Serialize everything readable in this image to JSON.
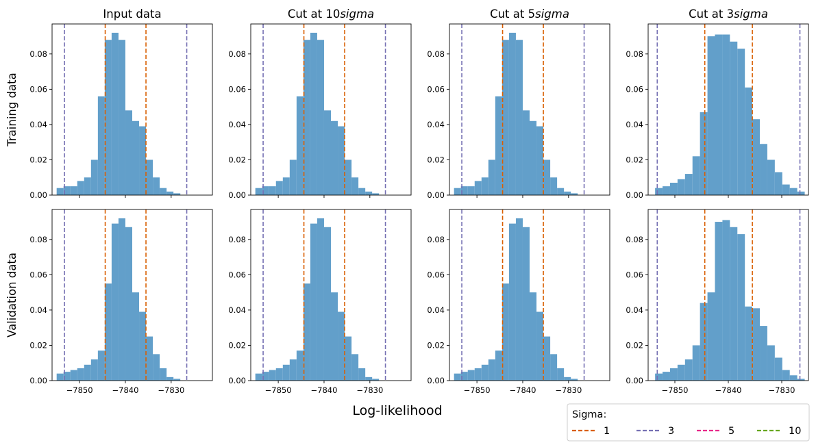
{
  "figure": {
    "xlabel": "Log-likelihood",
    "row_labels": [
      "Training data",
      "Validation data"
    ],
    "column_titles": [
      {
        "text": "Input data",
        "sigma_suffix": ""
      },
      {
        "text": "Cut at 10",
        "sigma_suffix": "sigma"
      },
      {
        "text": "Cut at 5",
        "sigma_suffix": "sigma"
      },
      {
        "text": "Cut at 3",
        "sigma_suffix": "sigma"
      }
    ]
  },
  "legend": {
    "title": "Sigma:",
    "entries": [
      {
        "label": "1",
        "color": "#d95f02"
      },
      {
        "label": "3",
        "color": "#7570b3"
      },
      {
        "label": "5",
        "color": "#e7298a"
      },
      {
        "label": "10",
        "color": "#66a61e"
      }
    ]
  },
  "chart_data": [
    {
      "type": "bar",
      "row": "Training data",
      "column": "Input data",
      "bins_start": -7855.0,
      "bin_width": 1.5,
      "values": [
        0.004,
        0.005,
        0.005,
        0.008,
        0.01,
        0.02,
        0.056,
        0.088,
        0.092,
        0.088,
        0.048,
        0.042,
        0.039,
        0.02,
        0.01,
        0.004,
        0.002,
        0.001
      ],
      "vlines": [
        {
          "sigma": "1",
          "x": [
            -7844.4,
            -7835.5
          ]
        },
        {
          "sigma": "3",
          "x": [
            -7853.3,
            -7826.6
          ]
        }
      ],
      "xlim": [
        -7856,
        -7821
      ],
      "ylim": [
        0,
        0.097
      ],
      "xticks": [
        -7850,
        -7840,
        -7830
      ],
      "yticks": [
        0.0,
        0.02,
        0.04,
        0.06,
        0.08
      ]
    },
    {
      "type": "bar",
      "row": "Training data",
      "column": "Cut at 10sigma",
      "bins_start": -7855.0,
      "bin_width": 1.5,
      "values": [
        0.004,
        0.005,
        0.005,
        0.008,
        0.01,
        0.02,
        0.056,
        0.088,
        0.092,
        0.088,
        0.048,
        0.042,
        0.039,
        0.02,
        0.01,
        0.004,
        0.002,
        0.001
      ],
      "vlines": [
        {
          "sigma": "1",
          "x": [
            -7844.4,
            -7835.5
          ]
        },
        {
          "sigma": "3",
          "x": [
            -7853.3,
            -7826.6
          ]
        }
      ],
      "xlim": [
        -7856,
        -7821
      ],
      "ylim": [
        0,
        0.097
      ],
      "xticks": [
        -7850,
        -7840,
        -7830
      ],
      "yticks": [
        0.0,
        0.02,
        0.04,
        0.06,
        0.08
      ]
    },
    {
      "type": "bar",
      "row": "Training data",
      "column": "Cut at 5sigma",
      "bins_start": -7855.0,
      "bin_width": 1.5,
      "values": [
        0.004,
        0.005,
        0.005,
        0.008,
        0.01,
        0.02,
        0.056,
        0.088,
        0.092,
        0.088,
        0.048,
        0.042,
        0.039,
        0.02,
        0.01,
        0.004,
        0.002,
        0.001
      ],
      "vlines": [
        {
          "sigma": "1",
          "x": [
            -7844.4,
            -7835.5
          ]
        },
        {
          "sigma": "3",
          "x": [
            -7853.3,
            -7826.6
          ]
        }
      ],
      "xlim": [
        -7856,
        -7821
      ],
      "ylim": [
        0,
        0.097
      ],
      "xticks": [
        -7850,
        -7840,
        -7830
      ],
      "yticks": [
        0.0,
        0.02,
        0.04,
        0.06,
        0.08
      ]
    },
    {
      "type": "bar",
      "row": "Training data",
      "column": "Cut at 3sigma",
      "bins_start": -7853.7,
      "bin_width": 1.4,
      "values": [
        0.004,
        0.005,
        0.007,
        0.009,
        0.012,
        0.022,
        0.047,
        0.09,
        0.091,
        0.091,
        0.087,
        0.083,
        0.061,
        0.043,
        0.029,
        0.02,
        0.013,
        0.006,
        0.004,
        0.002
      ],
      "vlines": [
        {
          "sigma": "1",
          "x": [
            -7844.4,
            -7835.5
          ]
        },
        {
          "sigma": "3",
          "x": [
            -7853.3,
            -7826.6
          ]
        }
      ],
      "xlim": [
        -7855,
        -7825
      ],
      "ylim": [
        0,
        0.097
      ],
      "xticks": [
        -7850,
        -7840,
        -7830
      ],
      "yticks": [
        0.0,
        0.02,
        0.04,
        0.06,
        0.08
      ]
    },
    {
      "type": "bar",
      "row": "Validation data",
      "column": "Input data",
      "bins_start": -7855.0,
      "bin_width": 1.5,
      "values": [
        0.004,
        0.005,
        0.006,
        0.007,
        0.009,
        0.012,
        0.017,
        0.055,
        0.089,
        0.092,
        0.087,
        0.05,
        0.039,
        0.025,
        0.015,
        0.007,
        0.002,
        0.001
      ],
      "vlines": [
        {
          "sigma": "1",
          "x": [
            -7844.4,
            -7835.5
          ]
        },
        {
          "sigma": "3",
          "x": [
            -7853.3,
            -7826.6
          ]
        }
      ],
      "xlim": [
        -7856,
        -7821
      ],
      "ylim": [
        0,
        0.097
      ],
      "xticks": [
        -7850,
        -7840,
        -7830
      ],
      "yticks": [
        0.0,
        0.02,
        0.04,
        0.06,
        0.08
      ]
    },
    {
      "type": "bar",
      "row": "Validation data",
      "column": "Cut at 10sigma",
      "bins_start": -7855.0,
      "bin_width": 1.5,
      "values": [
        0.004,
        0.005,
        0.006,
        0.007,
        0.009,
        0.012,
        0.017,
        0.055,
        0.089,
        0.092,
        0.087,
        0.05,
        0.039,
        0.025,
        0.015,
        0.007,
        0.002,
        0.001
      ],
      "vlines": [
        {
          "sigma": "1",
          "x": [
            -7844.4,
            -7835.5
          ]
        },
        {
          "sigma": "3",
          "x": [
            -7853.3,
            -7826.6
          ]
        }
      ],
      "xlim": [
        -7856,
        -7821
      ],
      "ylim": [
        0,
        0.097
      ],
      "xticks": [
        -7850,
        -7840,
        -7830
      ],
      "yticks": [
        0.0,
        0.02,
        0.04,
        0.06,
        0.08
      ]
    },
    {
      "type": "bar",
      "row": "Validation data",
      "column": "Cut at 5sigma",
      "bins_start": -7855.0,
      "bin_width": 1.5,
      "values": [
        0.004,
        0.005,
        0.006,
        0.007,
        0.009,
        0.012,
        0.017,
        0.055,
        0.089,
        0.092,
        0.087,
        0.05,
        0.039,
        0.025,
        0.015,
        0.007,
        0.002,
        0.001
      ],
      "vlines": [
        {
          "sigma": "1",
          "x": [
            -7844.4,
            -7835.5
          ]
        },
        {
          "sigma": "3",
          "x": [
            -7853.3,
            -7826.6
          ]
        }
      ],
      "xlim": [
        -7856,
        -7821
      ],
      "ylim": [
        0,
        0.097
      ],
      "xticks": [
        -7850,
        -7840,
        -7830
      ],
      "yticks": [
        0.0,
        0.02,
        0.04,
        0.06,
        0.08
      ]
    },
    {
      "type": "bar",
      "row": "Validation data",
      "column": "Cut at 3sigma",
      "bins_start": -7853.7,
      "bin_width": 1.4,
      "values": [
        0.004,
        0.005,
        0.007,
        0.009,
        0.012,
        0.02,
        0.044,
        0.05,
        0.09,
        0.091,
        0.087,
        0.083,
        0.042,
        0.041,
        0.031,
        0.02,
        0.013,
        0.006,
        0.003,
        0.001
      ],
      "vlines": [
        {
          "sigma": "1",
          "x": [
            -7844.4,
            -7835.5
          ]
        },
        {
          "sigma": "3",
          "x": [
            -7853.3,
            -7826.6
          ]
        }
      ],
      "xlim": [
        -7855,
        -7825
      ],
      "ylim": [
        0,
        0.097
      ],
      "xticks": [
        -7850,
        -7840,
        -7830
      ],
      "yticks": [
        0.0,
        0.02,
        0.04,
        0.06,
        0.08
      ]
    }
  ]
}
